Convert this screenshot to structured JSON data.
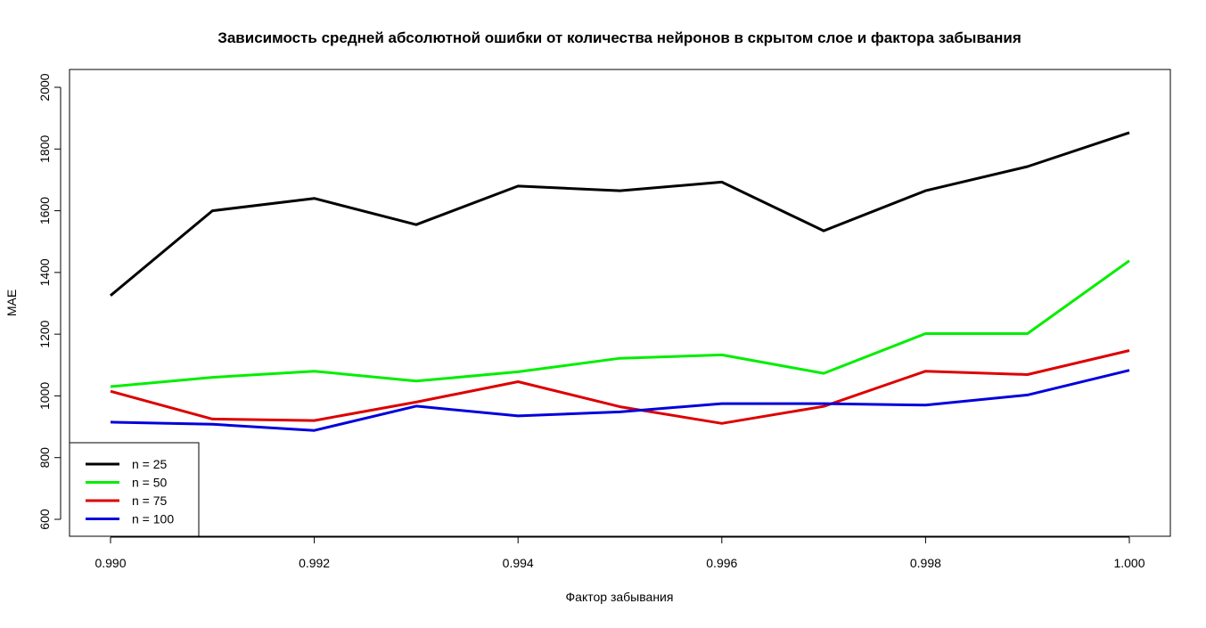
{
  "chart_data": {
    "type": "line",
    "title": "Зависимость средней абсолютной ошибки от количества нейронов в скрытом слое и фактора забывания",
    "xlabel": "Фактор забывания",
    "ylabel": "MAE",
    "xlim": [
      0.99,
      1.0
    ],
    "ylim": [
      600,
      2000
    ],
    "x": [
      0.99,
      0.991,
      0.992,
      0.993,
      0.994,
      0.995,
      0.996,
      0.997,
      0.998,
      0.999,
      1.0
    ],
    "x_ticks": [
      "0.990",
      "0.992",
      "0.994",
      "0.996",
      "0.998",
      "1.000"
    ],
    "y_ticks": [
      "600",
      "800",
      "1000",
      "1200",
      "1400",
      "1600",
      "1800",
      "2000"
    ],
    "legend_position": "bottom-left",
    "series": [
      {
        "name": "n = 25",
        "color": "#000000",
        "values": [
          1325,
          1600,
          1640,
          1555,
          1680,
          1665,
          1693,
          1535,
          1665,
          1743,
          1853
        ]
      },
      {
        "name": "n = 50",
        "color": "#00ee00",
        "values": [
          1030,
          1060,
          1080,
          1048,
          1078,
          1122,
          1133,
          1073,
          1202,
          1202,
          1438
        ]
      },
      {
        "name": "n = 75",
        "color": "#dd0000",
        "values": [
          1015,
          925,
          920,
          980,
          1046,
          965,
          911,
          966,
          1080,
          1069,
          1147
        ]
      },
      {
        "name": "n = 100",
        "color": "#0000dd",
        "values": [
          915,
          908,
          888,
          967,
          935,
          948,
          975,
          975,
          970,
          1003,
          1083
        ]
      }
    ]
  }
}
